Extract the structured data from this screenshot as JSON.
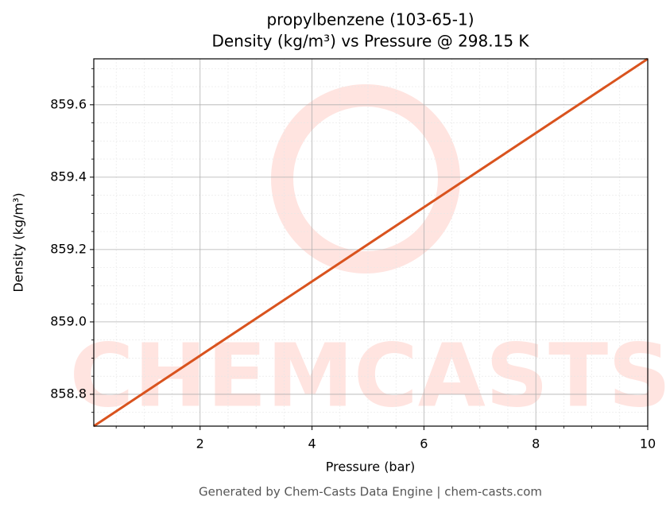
{
  "chart_data": {
    "type": "line",
    "title": "propylbenzene (103-65-1)",
    "subtitle": "Density (kg/m³) vs Pressure @ 298.15 K",
    "x_label": "Pressure (bar)",
    "y_label": "Density (kg/m³)",
    "x": [
      0.1,
      10
    ],
    "series": [
      {
        "name": "Density",
        "color": "#d9531e",
        "values": [
          858.712,
          859.727
        ]
      }
    ],
    "xlim": [
      0.1,
      10
    ],
    "ylim": [
      858.712,
      859.727
    ],
    "xticks": [
      2,
      4,
      6,
      8,
      10
    ],
    "yticks": [
      858.8,
      {
        "value": 859.0,
        "label": "859.0"
      },
      859.2,
      859.4,
      859.6
    ],
    "xminorticks": [
      0.5,
      1,
      1.5,
      2.5,
      3,
      3.5,
      4.5,
      5,
      5.5,
      6.5,
      7,
      7.5,
      8.5,
      9,
      9.5
    ],
    "yminorticks": [
      858.75,
      858.85,
      858.9,
      858.95,
      859.05,
      859.1,
      859.15,
      859.25,
      859.3,
      859.35,
      859.45,
      859.5,
      859.55,
      859.65,
      859.7
    ],
    "grid": true,
    "watermark": "CHEMCASTS",
    "footer": "Generated by Chem-Casts Data Engine | chem-casts.com"
  }
}
